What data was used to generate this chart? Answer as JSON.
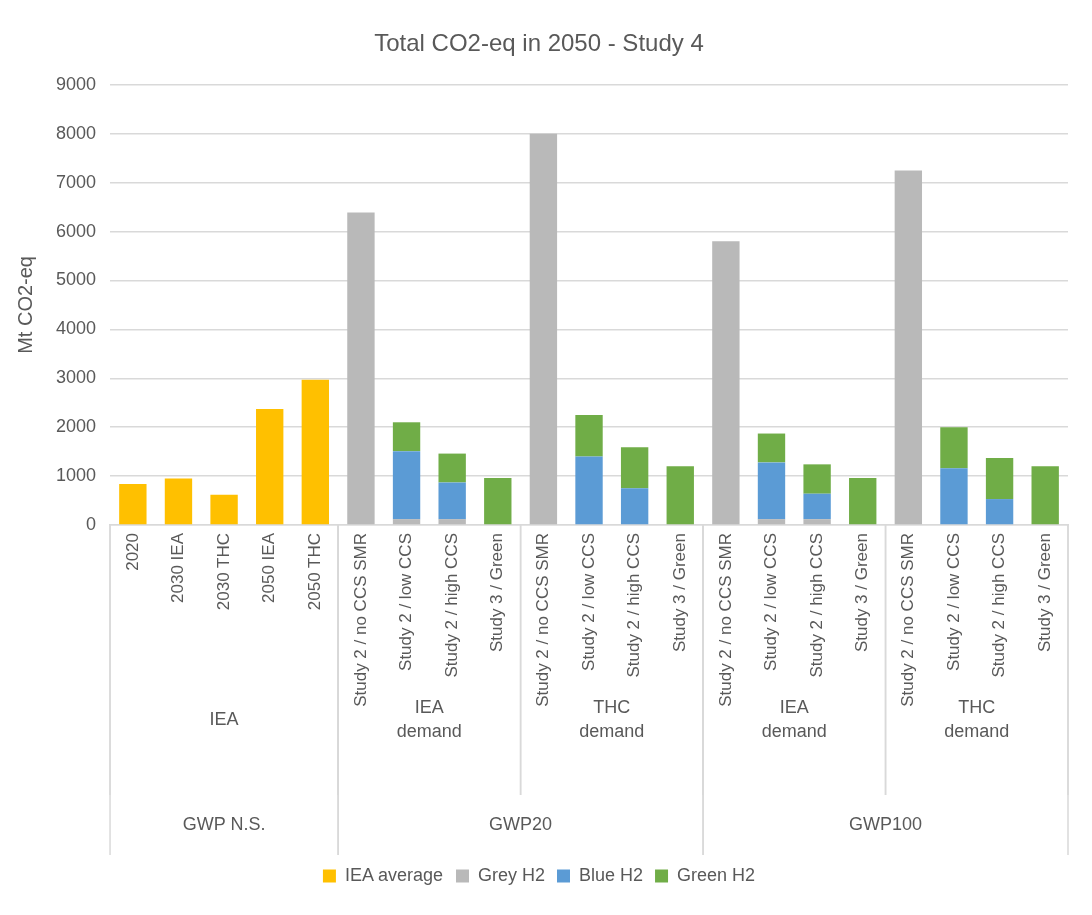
{
  "chart_data": {
    "type": "bar",
    "title": "Total CO2-eq in 2050 - Study 4",
    "ylabel": "Mt CO2-eq",
    "stacked": true,
    "categories": [
      "2020",
      "2030 IEA",
      "2030 THC",
      "2050 IEA",
      "2050 THC",
      "Study 2 / no CCS SMR",
      "Study 2 / low CCS",
      "Study 2 / high CCS",
      "Study 3 / Green",
      "Study 2 / no CCS SMR",
      "Study 2 / low CCS",
      "Study 2 / high CCS",
      "Study 3 / Green",
      "Study 2 / no CCS SMR",
      "Study 2 / low CCS",
      "Study 2 / high CCS",
      "Study 3 / Green",
      "Study 2 / no CCS SMR",
      "Study 2 / low CCS",
      "Study 2 / high CCS",
      "Study 3 / Green"
    ],
    "series": [
      {
        "name": "IEA average",
        "color": "#ffc000",
        "values": [
          840,
          950,
          620,
          2370,
          2970,
          null,
          null,
          null,
          null,
          null,
          null,
          null,
          null,
          null,
          null,
          null,
          null,
          null,
          null,
          null,
          null
        ]
      },
      {
        "name": "Grey H2",
        "color": "#b9b9b9",
        "values": [
          null,
          null,
          null,
          null,
          null,
          6390,
          120,
          120,
          null,
          8000,
          null,
          null,
          null,
          5800,
          120,
          120,
          null,
          7250,
          null,
          null,
          null
        ]
      },
      {
        "name": "Blue H2",
        "color": "#5b9bd5",
        "values": [
          null,
          null,
          null,
          null,
          null,
          null,
          1390,
          750,
          null,
          null,
          1400,
          750,
          null,
          null,
          1160,
          520,
          null,
          null,
          1160,
          530,
          null
        ]
      },
      {
        "name": "Green H2",
        "color": "#70ad47",
        "values": [
          null,
          null,
          null,
          null,
          null,
          null,
          590,
          590,
          960,
          null,
          850,
          840,
          1200,
          null,
          590,
          600,
          960,
          null,
          840,
          840,
          1200
        ]
      }
    ],
    "annotations": [
      "IEA",
      "IEA demand",
      "THC demand",
      "IEA demand",
      "THC demand",
      "GWP N.S.",
      "GWP20",
      "GWP100"
    ],
    "ylim": [
      0,
      9000
    ],
    "yticks": [
      0,
      1000,
      2000,
      3000,
      4000,
      5000,
      6000,
      7000,
      8000,
      9000
    ],
    "grid": "y",
    "legend": "bottom"
  }
}
